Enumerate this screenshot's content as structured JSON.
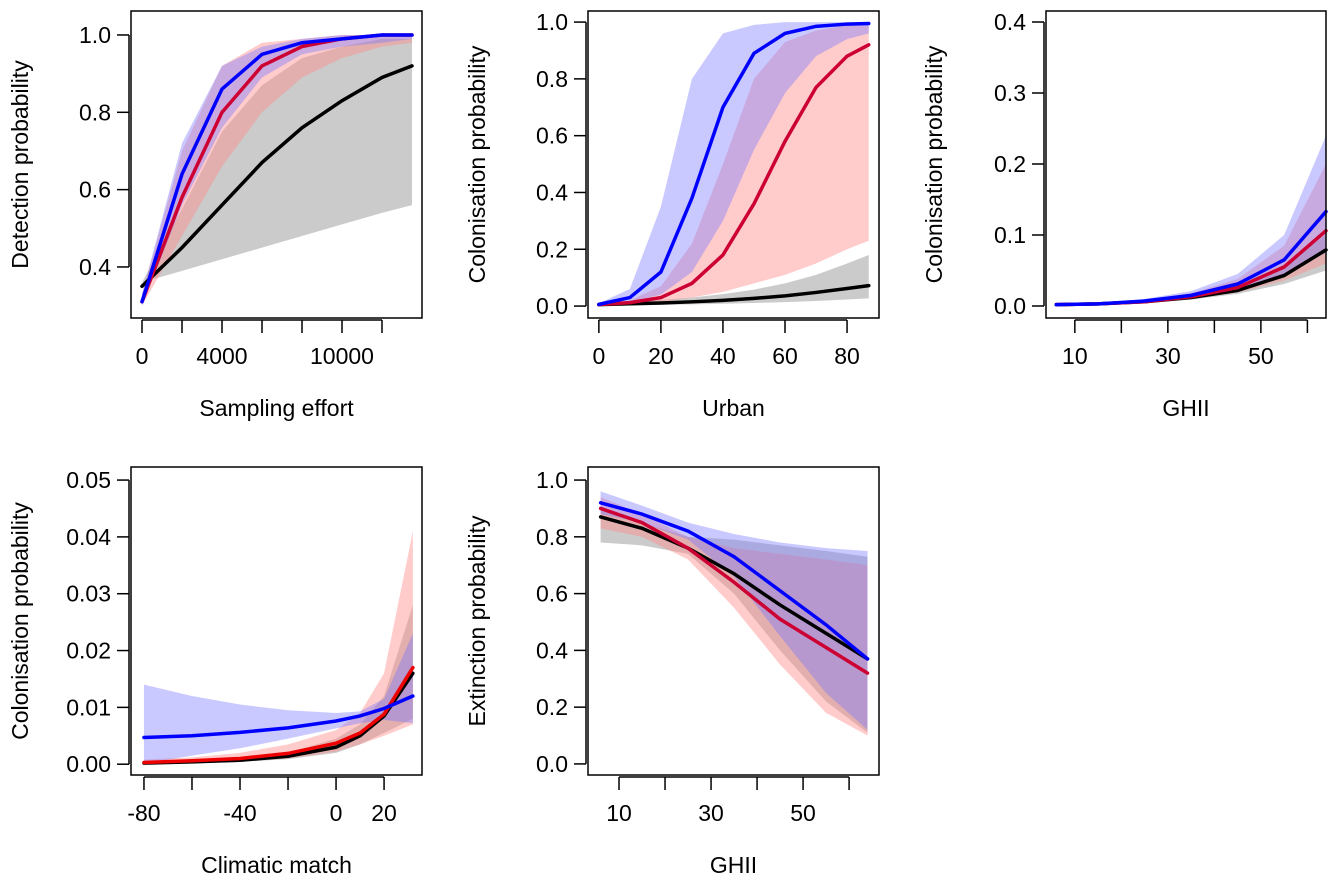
{
  "chart_data": [
    {
      "type": "line",
      "xlabel": "Sampling effort",
      "ylabel": "Detection probability",
      "x": [
        0,
        2000,
        4000,
        6000,
        8000,
        10000,
        12000,
        13500
      ],
      "xlim": [
        -550,
        14000
      ],
      "ylim": [
        0.268,
        1.062
      ],
      "xticks": [
        0,
        {
          "value": 2000,
          "label": null
        },
        4000,
        {
          "value": 6000,
          "label": null
        },
        {
          "value": 8000,
          "label": null
        },
        10000,
        {
          "value": 12000,
          "label": null
        }
      ],
      "yticks": [
        0.4,
        0.6,
        0.8,
        {
          "value": 1,
          "label": "1.0"
        }
      ],
      "series": [
        {
          "color": "#000000",
          "band_color": "rgba(185,185,185,0.75)",
          "values": [
            0.35,
            0.45,
            0.56,
            0.67,
            0.76,
            0.83,
            0.89,
            0.92
          ],
          "lower": [
            0.36,
            0.39,
            0.42,
            0.45,
            0.48,
            0.51,
            0.54,
            0.56
          ],
          "upper": [
            0.36,
            0.55,
            0.75,
            0.87,
            0.94,
            0.97,
            0.99,
            0.99
          ]
        },
        {
          "color": "#cc0033",
          "band_color": "rgba(255,140,140,0.45)",
          "values": [
            0.31,
            0.58,
            0.8,
            0.92,
            0.97,
            0.99,
            1.0,
            1.0
          ],
          "lower": [
            0.3,
            0.48,
            0.66,
            0.8,
            0.89,
            0.94,
            0.97,
            0.98
          ],
          "upper": [
            0.33,
            0.7,
            0.92,
            0.98,
            0.99,
            1.0,
            1.0,
            1.0
          ]
        },
        {
          "color": "#0000ff",
          "band_color": "rgba(120,120,255,0.4)",
          "values": [
            0.31,
            0.64,
            0.86,
            0.95,
            0.98,
            0.99,
            1.0,
            1.0
          ],
          "lower": [
            0.3,
            0.56,
            0.76,
            0.89,
            0.95,
            0.97,
            0.98,
            0.99
          ],
          "upper": [
            0.33,
            0.72,
            0.92,
            0.97,
            0.99,
            1.0,
            1.0,
            1.0
          ]
        }
      ]
    },
    {
      "type": "line",
      "xlabel": "Urban",
      "ylabel": "Colonisation probability",
      "x": [
        0,
        10,
        20,
        30,
        40,
        50,
        60,
        70,
        80,
        87
      ],
      "xlim": [
        -3.5,
        90.3
      ],
      "ylim": [
        -0.042,
        1.039
      ],
      "xticks": [
        0,
        20,
        40,
        60,
        80
      ],
      "yticks": [
        {
          "value": 0,
          "label": "0.0"
        },
        0.2,
        0.4,
        0.6,
        0.8,
        {
          "value": 1,
          "label": "1.0"
        }
      ],
      "series": [
        {
          "color": "#000000",
          "band_color": "rgba(185,185,185,0.75)",
          "values": [
            0.005,
            0.008,
            0.011,
            0.015,
            0.02,
            0.027,
            0.036,
            0.048,
            0.062,
            0.072
          ],
          "lower": [
            0,
            0.002,
            0.004,
            0.006,
            0.008,
            0.011,
            0.014,
            0.018,
            0.023,
            0.027
          ],
          "upper": [
            0.01,
            0.015,
            0.022,
            0.03,
            0.042,
            0.058,
            0.08,
            0.11,
            0.15,
            0.18
          ]
        },
        {
          "color": "#cc0033",
          "band_color": "rgba(255,140,140,0.45)",
          "values": [
            0.005,
            0.012,
            0.03,
            0.08,
            0.18,
            0.36,
            0.58,
            0.77,
            0.88,
            0.92
          ],
          "lower": [
            0.004,
            0.008,
            0.015,
            0.03,
            0.05,
            0.08,
            0.11,
            0.15,
            0.2,
            0.23
          ],
          "upper": [
            0.007,
            0.02,
            0.07,
            0.22,
            0.5,
            0.8,
            0.93,
            0.97,
            0.99,
            0.99
          ]
        },
        {
          "color": "#0000ff",
          "band_color": "rgba(120,120,255,0.4)",
          "values": [
            0.006,
            0.03,
            0.12,
            0.38,
            0.7,
            0.89,
            0.96,
            0.985,
            0.993,
            0.995
          ],
          "lower": [
            0.004,
            0.015,
            0.04,
            0.12,
            0.3,
            0.55,
            0.75,
            0.88,
            0.94,
            0.96
          ],
          "upper": [
            0.01,
            0.06,
            0.35,
            0.8,
            0.96,
            0.99,
            1.0,
            1.0,
            1.0,
            1.0
          ]
        }
      ]
    },
    {
      "type": "line",
      "xlabel": "GHII",
      "ylabel": "Colonisation probability",
      "x": [
        6,
        15,
        25,
        35,
        45,
        55,
        64
      ],
      "xlim": [
        3.8,
        64
      ],
      "ylim": [
        -0.0169,
        0.4155
      ],
      "xticks": [
        10,
        {
          "value": 20,
          "label": null
        },
        30,
        {
          "value": 40,
          "label": null
        },
        50,
        {
          "value": 60,
          "label": null
        }
      ],
      "yticks": [
        {
          "value": 0,
          "label": "0.0"
        },
        0.1,
        0.2,
        0.3,
        0.4
      ],
      "series": [
        {
          "color": "#000000",
          "band_color": "rgba(185,185,185,0.75)",
          "values": [
            0.002,
            0.003,
            0.006,
            0.012,
            0.022,
            0.043,
            0.079
          ],
          "lower": [
            0.001,
            0.002,
            0.004,
            0.009,
            0.017,
            0.031,
            0.05
          ],
          "upper": [
            0.003,
            0.004,
            0.008,
            0.016,
            0.03,
            0.058,
            0.1
          ]
        },
        {
          "color": "#cc0033",
          "band_color": "rgba(255,140,140,0.45)",
          "values": [
            0.002,
            0.003,
            0.006,
            0.013,
            0.026,
            0.055,
            0.106
          ],
          "lower": [
            0.001,
            0.002,
            0.005,
            0.01,
            0.019,
            0.036,
            0.06
          ],
          "upper": [
            0.003,
            0.005,
            0.009,
            0.018,
            0.038,
            0.085,
            0.2
          ]
        },
        {
          "color": "#0000ff",
          "band_color": "rgba(120,120,255,0.4)",
          "values": [
            0.002,
            0.003,
            0.007,
            0.015,
            0.031,
            0.065,
            0.133
          ],
          "lower": [
            0.001,
            0.002,
            0.005,
            0.011,
            0.023,
            0.045,
            0.075
          ],
          "upper": [
            0.003,
            0.005,
            0.01,
            0.021,
            0.045,
            0.1,
            0.24
          ]
        }
      ]
    },
    {
      "type": "line",
      "xlabel": "Climatic match",
      "ylabel": "Colonisation probability",
      "x": [
        -80,
        -60,
        -40,
        -20,
        0,
        10,
        20,
        32
      ],
      "xlim": [
        -85.4,
        35.8
      ],
      "ylim": [
        -0.0019,
        0.0523
      ],
      "xticks": [
        -80,
        {
          "value": -60,
          "label": null
        },
        -40,
        {
          "value": -20,
          "label": null
        },
        0,
        20
      ],
      "yticks": [
        {
          "value": 0,
          "label": "0.00"
        },
        {
          "value": 0.01,
          "label": "0.01"
        },
        {
          "value": 0.02,
          "label": "0.02"
        },
        {
          "value": 0.03,
          "label": "0.03"
        },
        {
          "value": 0.04,
          "label": "0.04"
        },
        {
          "value": 0.05,
          "label": "0.05"
        }
      ],
      "series": [
        {
          "color": "#000000",
          "band_color": "rgba(185,185,185,0.75)",
          "values": [
            0.0002,
            0.0004,
            0.0007,
            0.0014,
            0.003,
            0.005,
            0.0085,
            0.016
          ],
          "lower": [
            0.0001,
            0.0002,
            0.0004,
            0.0009,
            0.002,
            0.0035,
            0.0055,
            0.008
          ],
          "upper": [
            0.0004,
            0.0007,
            0.0011,
            0.002,
            0.0045,
            0.007,
            0.012,
            0.028
          ]
        },
        {
          "color": "#ee0000",
          "band_color": "rgba(255,140,140,0.45)",
          "values": [
            0.0003,
            0.0006,
            0.001,
            0.0019,
            0.0037,
            0.0055,
            0.0088,
            0.017
          ],
          "lower": [
            0.0001,
            0.0003,
            0.0005,
            0.001,
            0.0022,
            0.0035,
            0.005,
            0.007
          ],
          "upper": [
            0.0008,
            0.0012,
            0.002,
            0.0035,
            0.006,
            0.009,
            0.016,
            0.041
          ]
        },
        {
          "color": "#0000ff",
          "band_color": "rgba(120,120,255,0.4)",
          "values": [
            0.0047,
            0.005,
            0.0056,
            0.0064,
            0.0076,
            0.0085,
            0.0098,
            0.012
          ],
          "lower": [
            0.0001,
            0.0015,
            0.0028,
            0.0045,
            0.0063,
            0.0072,
            0.0078,
            0.0072
          ],
          "upper": [
            0.014,
            0.012,
            0.0105,
            0.0095,
            0.009,
            0.0093,
            0.0115,
            0.023
          ]
        }
      ]
    },
    {
      "type": "line",
      "xlabel": "GHII",
      "ylabel": "Extinction probability",
      "x": [
        6,
        15,
        25,
        35,
        45,
        55,
        64
      ],
      "xlim": [
        3.26,
        66.5
      ],
      "ylim": [
        -0.039,
        1.046
      ],
      "xticks": [
        10,
        {
          "value": 20,
          "label": null
        },
        30,
        {
          "value": 40,
          "label": null
        },
        50,
        {
          "value": 60,
          "label": null
        }
      ],
      "yticks": [
        {
          "value": 0,
          "label": "0.0"
        },
        0.2,
        0.4,
        0.6,
        0.8,
        {
          "value": 1,
          "label": "1.0"
        }
      ],
      "series": [
        {
          "color": "#000000",
          "band_color": "rgba(185,185,185,0.75)",
          "values": [
            0.87,
            0.83,
            0.76,
            0.67,
            0.56,
            0.46,
            0.37
          ],
          "lower": [
            0.78,
            0.77,
            0.74,
            0.6,
            0.4,
            0.22,
            0.11
          ],
          "upper": [
            0.9,
            0.85,
            0.8,
            0.79,
            0.77,
            0.75,
            0.73
          ]
        },
        {
          "color": "#cc0033",
          "band_color": "rgba(255,140,140,0.45)",
          "values": [
            0.9,
            0.85,
            0.76,
            0.64,
            0.51,
            0.41,
            0.32
          ],
          "lower": [
            0.83,
            0.8,
            0.72,
            0.55,
            0.35,
            0.18,
            0.1
          ],
          "upper": [
            0.94,
            0.88,
            0.8,
            0.76,
            0.74,
            0.72,
            0.7
          ]
        },
        {
          "color": "#0000ff",
          "band_color": "rgba(120,120,255,0.4)",
          "values": [
            0.92,
            0.88,
            0.82,
            0.73,
            0.61,
            0.49,
            0.37
          ],
          "lower": [
            0.88,
            0.85,
            0.79,
            0.66,
            0.45,
            0.25,
            0.12
          ],
          "upper": [
            0.96,
            0.91,
            0.85,
            0.81,
            0.78,
            0.76,
            0.75
          ]
        }
      ]
    }
  ]
}
